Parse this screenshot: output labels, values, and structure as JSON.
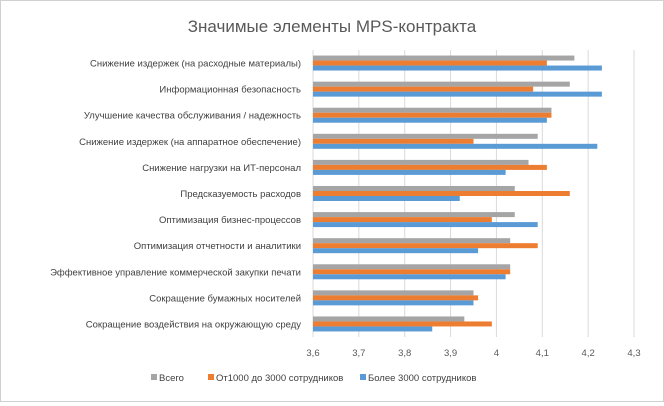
{
  "chart_data": {
    "type": "bar",
    "orientation": "horizontal",
    "title": "Значимые элементы MPS-контракта",
    "xlabel": "",
    "ylabel": "",
    "xlim": [
      3.6,
      4.3
    ],
    "x_ticks": [
      "3,6",
      "3,7",
      "3,8",
      "3,9",
      "4",
      "4,1",
      "4,2",
      "4,3"
    ],
    "x_tick_values": [
      3.6,
      3.7,
      3.8,
      3.9,
      4.0,
      4.1,
      4.2,
      4.3
    ],
    "grid": true,
    "legend_position": "bottom",
    "categories": [
      "Снижение издержек (на расходные материалы)",
      "Информационная безопасность",
      "Улучшение качества обслуживания / надежность",
      "Снижение издержек (на аппаратное обеспечение)",
      "Снижение нагрузки на ИТ-персонал",
      "Предсказуемость расходов",
      "Оптимизация бизнес-процессов",
      "Оптимизация отчетности и аналитики",
      "Эффективное управление коммерческой закупки печати",
      "Сокращение бумажных носителей",
      "Сокращение воздействия на окружающую среду"
    ],
    "series": [
      {
        "name": "Всего",
        "color": "#a5a5a5",
        "values": [
          4.17,
          4.16,
          4.12,
          4.09,
          4.07,
          4.04,
          4.04,
          4.03,
          4.03,
          3.95,
          3.93
        ]
      },
      {
        "name": "От1000 до 3000 сотрудников",
        "color": "#ed7d31",
        "values": [
          4.11,
          4.08,
          4.12,
          3.95,
          4.11,
          4.16,
          3.99,
          4.09,
          4.03,
          3.96,
          3.99
        ]
      },
      {
        "name": "Более 3000 сотрудников",
        "color": "#5b9bd5",
        "values": [
          4.23,
          4.23,
          4.11,
          4.22,
          4.02,
          3.92,
          4.09,
          3.96,
          4.02,
          3.95,
          3.86
        ]
      }
    ]
  }
}
